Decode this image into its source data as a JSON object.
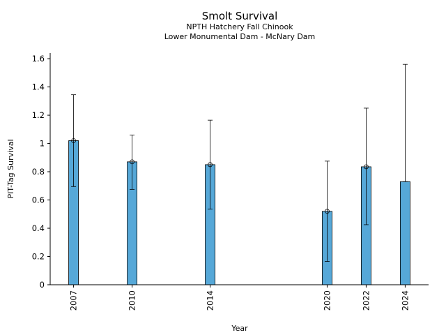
{
  "chart_data": {
    "type": "bar",
    "title": "Smolt Survival",
    "subtitle_1": "NPTH Hatchery Fall Chinook",
    "subtitle_2": "Lower Monumental Dam - McNary Dam",
    "xlabel": "Year",
    "ylabel": "PIT-Tag Survival",
    "xlim": [
      2005.8,
      2025.2
    ],
    "ylim": [
      0,
      1.64
    ],
    "yticks": [
      0,
      0.2,
      0.4,
      0.6,
      0.8,
      1,
      1.2,
      1.4,
      1.6
    ],
    "ytick_labels": [
      "0",
      "0.2",
      "0.4",
      "0.6",
      "0.8",
      "1",
      "1.2",
      "1.4",
      "1.6"
    ],
    "categories": [
      "2007",
      "2010",
      "2014",
      "2020",
      "2022",
      "2024"
    ],
    "x": [
      2007,
      2010,
      2014,
      2020,
      2022,
      2024
    ],
    "values": [
      1.02,
      0.87,
      0.85,
      0.52,
      0.835,
      0.73
    ],
    "error_low": [
      0.695,
      0.675,
      0.535,
      0.165,
      0.425,
      0.73
    ],
    "error_high": [
      1.345,
      1.06,
      1.165,
      0.875,
      1.25,
      1.56
    ],
    "point_marker": [
      true,
      true,
      true,
      true,
      true,
      false
    ],
    "bar_color": "#56a8d8",
    "bar_edge_color": "#000000",
    "grid": false
  }
}
